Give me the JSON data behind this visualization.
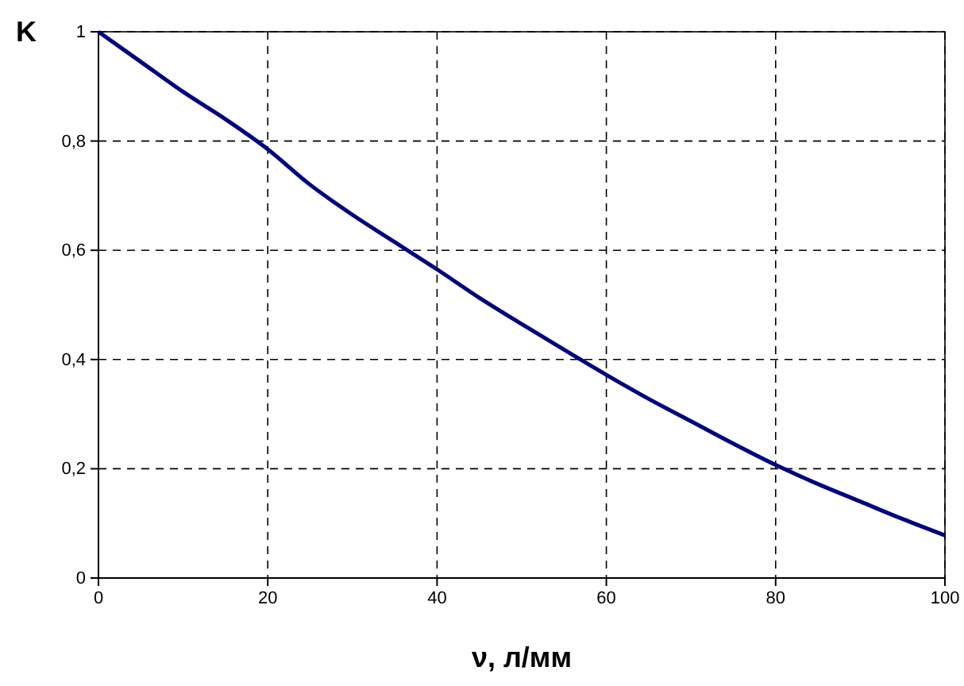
{
  "chart_data": {
    "type": "line",
    "xlabel": "ν, л/мм",
    "ylabel": "K",
    "x": [
      0,
      5,
      10,
      15,
      20,
      25,
      30,
      35,
      40,
      45,
      50,
      55,
      60,
      65,
      70,
      75,
      80,
      85,
      90,
      95,
      100
    ],
    "series": [
      {
        "color": "#000080",
        "values": [
          1.0,
          0.945,
          0.89,
          0.84,
          0.785,
          0.72,
          0.665,
          0.615,
          0.565,
          0.513,
          0.465,
          0.418,
          0.372,
          0.328,
          0.287,
          0.246,
          0.207,
          0.172,
          0.14,
          0.108,
          0.078
        ]
      }
    ],
    "xlim": [
      0,
      100
    ],
    "xticks": [
      0,
      20,
      40,
      60,
      80,
      100
    ],
    "ylim": [
      0,
      1
    ],
    "yticks": [
      0,
      {
        "value": 0.2,
        "label": "0,2"
      },
      {
        "value": 0.4,
        "label": "0,4"
      },
      {
        "value": 0.6,
        "label": "0,6"
      },
      {
        "value": 0.8,
        "label": "0,8"
      },
      1
    ],
    "grid": true,
    "marker": "none",
    "line_style": "solid"
  }
}
